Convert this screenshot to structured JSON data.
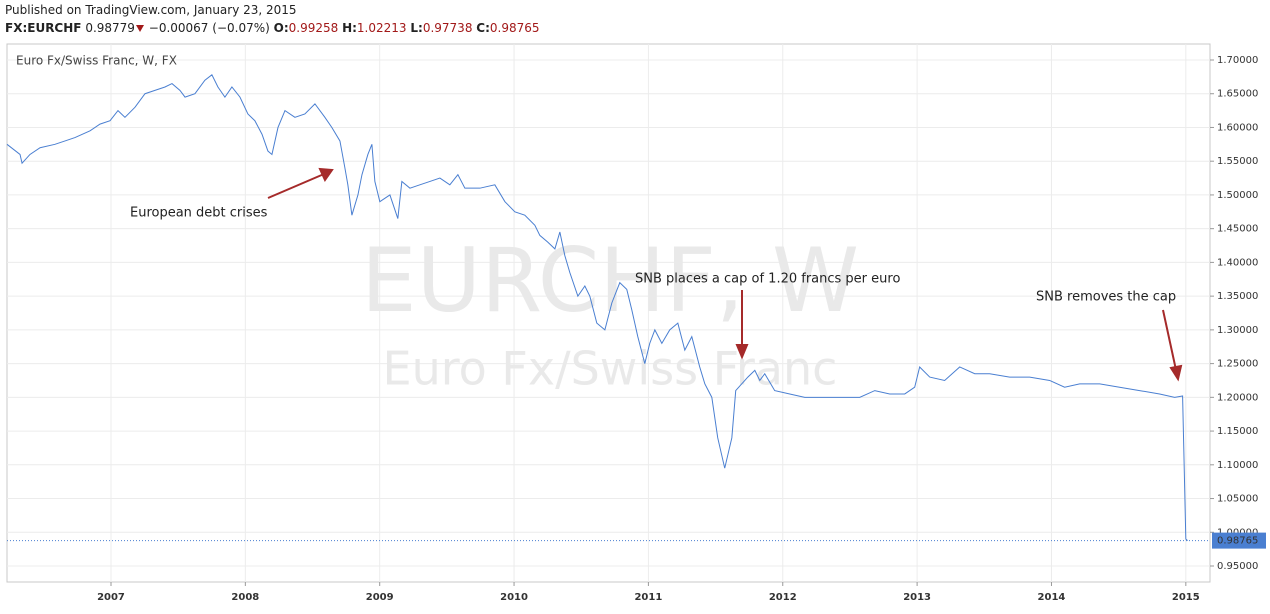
{
  "header": {
    "published": "Published on TradingView.com, January 23, 2015",
    "symbol": "FX:EURCHF",
    "last": "0.98779",
    "change": "−0.00067 (−0.07%)",
    "open_label": "O:",
    "open": "0.99258",
    "high_label": "H:",
    "high": "1.02213",
    "low_label": "L:",
    "low": "0.97738",
    "close_label": "C:",
    "close": "0.98765"
  },
  "chart_data": {
    "type": "line",
    "watermark": [
      "EURCHF, W",
      "Euro Fx/Swiss Franc"
    ],
    "annotations": [
      "European debt crises",
      "SNB places a cap of 1.20 francs per euro",
      "SNB removes the cap"
    ],
    "x": [
      2006.226,
      2006.323,
      2006.338,
      2006.397,
      2006.472,
      2006.583,
      2006.658,
      2006.732,
      2006.844,
      2006.918,
      2006.993,
      2007.052,
      2007.104,
      2007.179,
      2007.253,
      2007.327,
      2007.402,
      2007.454,
      2007.513,
      2007.551,
      2007.625,
      2007.699,
      2007.751,
      2007.796,
      2007.848,
      2007.9,
      2007.96,
      2008.019,
      2008.071,
      2008.124,
      2008.168,
      2008.198,
      2008.243,
      2008.295,
      2008.369,
      2008.443,
      2008.518,
      2008.592,
      2008.644,
      2008.704,
      2008.741,
      2008.763,
      2008.793,
      2008.838,
      2008.868,
      2008.912,
      2008.942,
      2008.964,
      2009.001,
      2009.076,
      2009.135,
      2009.165,
      2009.225,
      2009.299,
      2009.374,
      2009.448,
      2009.522,
      2009.582,
      2009.634,
      2009.746,
      2009.857,
      2009.932,
      2010.006,
      2010.08,
      2010.155,
      2010.192,
      2010.251,
      2010.304,
      2010.341,
      2010.378,
      2010.415,
      2010.475,
      2010.527,
      2010.564,
      2010.616,
      2010.676,
      2010.728,
      2010.787,
      2010.839,
      2010.876,
      2010.921,
      2010.973,
      2011.01,
      2011.048,
      2011.1,
      2011.159,
      2011.219,
      2011.271,
      2011.323,
      2011.382,
      2011.42,
      2011.472,
      2011.516,
      2011.568,
      2011.621,
      2011.65,
      2011.695,
      2011.74,
      2011.792,
      2011.829,
      2011.866,
      2011.94,
      2012.052,
      2012.164,
      2012.424,
      2012.573,
      2012.685,
      2012.796,
      2012.908,
      2012.982,
      2013.019,
      2013.094,
      2013.205,
      2013.317,
      2013.429,
      2013.54,
      2013.689,
      2013.838,
      2013.987,
      2014.098,
      2014.21,
      2014.359,
      2014.507,
      2014.656,
      2014.805,
      2014.917,
      2014.976,
      2015.0,
      2015.013
    ],
    "series": [
      {
        "name": "Euro Fx/Swiss Franc, W, FX",
        "color": "#4a7fd1",
        "values": [
          1.575,
          1.56,
          1.547,
          1.56,
          1.57,
          1.575,
          1.58,
          1.585,
          1.595,
          1.605,
          1.61,
          1.625,
          1.615,
          1.63,
          1.65,
          1.655,
          1.66,
          1.665,
          1.655,
          1.645,
          1.65,
          1.67,
          1.678,
          1.66,
          1.645,
          1.66,
          1.645,
          1.62,
          1.61,
          1.59,
          1.565,
          1.56,
          1.6,
          1.625,
          1.615,
          1.62,
          1.635,
          1.615,
          1.6,
          1.58,
          1.54,
          1.515,
          1.47,
          1.5,
          1.53,
          1.56,
          1.575,
          1.52,
          1.49,
          1.5,
          1.465,
          1.52,
          1.51,
          1.515,
          1.52,
          1.525,
          1.515,
          1.53,
          1.51,
          1.51,
          1.515,
          1.49,
          1.475,
          1.47,
          1.455,
          1.44,
          1.43,
          1.42,
          1.445,
          1.41,
          1.385,
          1.35,
          1.365,
          1.35,
          1.31,
          1.3,
          1.34,
          1.37,
          1.36,
          1.33,
          1.29,
          1.25,
          1.28,
          1.3,
          1.28,
          1.3,
          1.31,
          1.27,
          1.29,
          1.245,
          1.22,
          1.2,
          1.14,
          1.095,
          1.14,
          1.21,
          1.22,
          1.23,
          1.24,
          1.225,
          1.235,
          1.21,
          1.205,
          1.2,
          1.2,
          1.2,
          1.21,
          1.205,
          1.205,
          1.215,
          1.245,
          1.23,
          1.225,
          1.245,
          1.235,
          1.235,
          1.23,
          1.23,
          1.225,
          1.215,
          1.22,
          1.22,
          1.215,
          1.21,
          1.205,
          1.2,
          1.202,
          0.99,
          0.98765
        ]
      }
    ],
    "xlim": [
      2006.226,
      2015.18
    ],
    "xticks": [
      2007,
      2008,
      2009,
      2010,
      2011,
      2012,
      2013,
      2014,
      2015
    ],
    "ylim": [
      0.9263,
      1.7237
    ],
    "yticks": [
      {
        "value": 0.95,
        "label": "0.95000"
      },
      {
        "value": 1.0,
        "label": "1.00000"
      },
      {
        "value": 1.05,
        "label": "1.05000"
      },
      {
        "value": 1.1,
        "label": "1.10000"
      },
      {
        "value": 1.15,
        "label": "1.15000"
      },
      {
        "value": 1.2,
        "label": "1.20000"
      },
      {
        "value": 1.25,
        "label": "1.25000"
      },
      {
        "value": 1.3,
        "label": "1.30000"
      },
      {
        "value": 1.35,
        "label": "1.35000"
      },
      {
        "value": 1.4,
        "label": "1.40000"
      },
      {
        "value": 1.45,
        "label": "1.45000"
      },
      {
        "value": 1.5,
        "label": "1.50000"
      },
      {
        "value": 1.55,
        "label": "1.55000"
      },
      {
        "value": 1.6,
        "label": "1.60000"
      },
      {
        "value": 1.65,
        "label": "1.65000"
      },
      {
        "value": 1.7,
        "label": "1.70000"
      }
    ],
    "grid": true
  }
}
